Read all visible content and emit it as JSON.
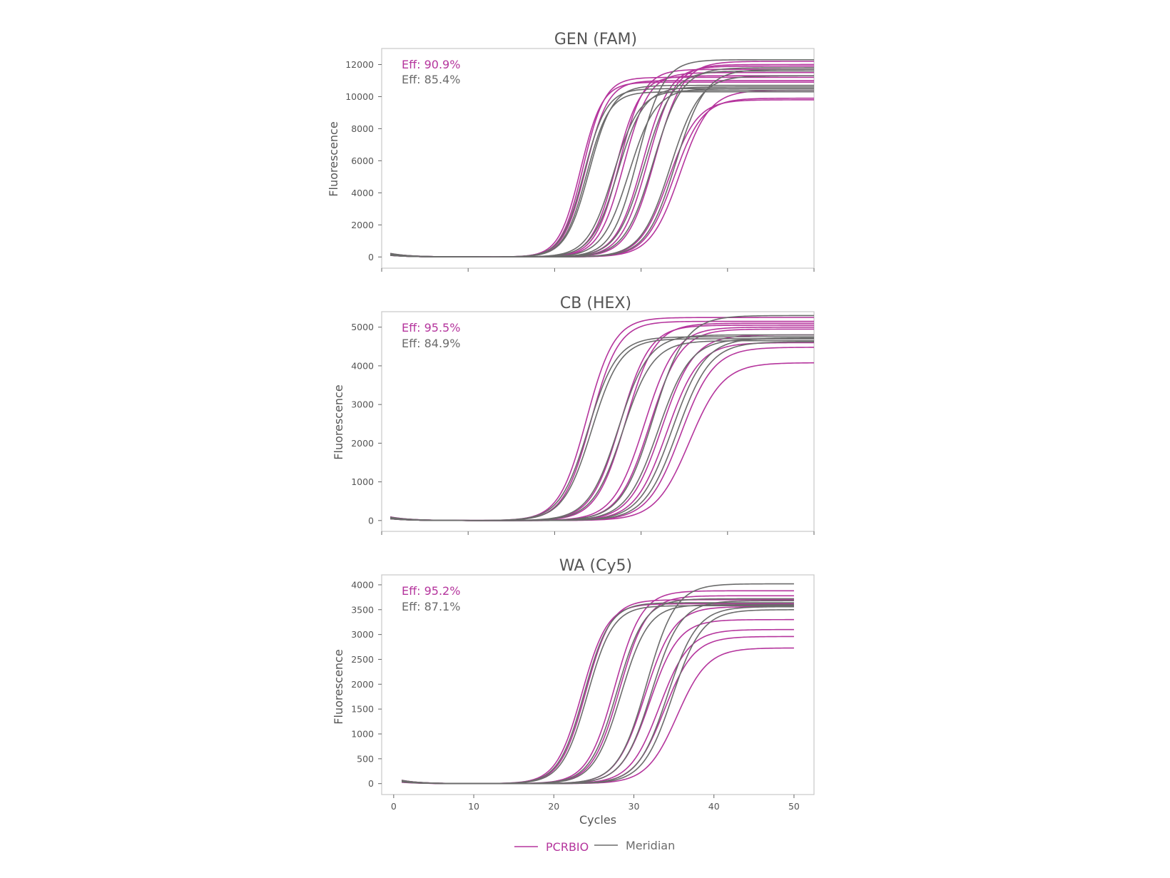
{
  "colors": {
    "pcrbio": "#b5359d",
    "meridian": "#6b6b6b",
    "text": "#555555"
  },
  "legend": {
    "pcrbio_label": "PCRBIO",
    "meridian_label": "Meridian"
  },
  "chart_data": [
    {
      "type": "line",
      "title": "GEN (FAM)",
      "xlabel": "",
      "ylabel": "Fluorescence",
      "xlim": [
        0,
        50
      ],
      "ylim": [
        -700,
        13000
      ],
      "x_ticks": [
        0,
        10,
        20,
        30,
        40,
        50
      ],
      "x_tick_labels_visible": false,
      "y_ticks": [
        0,
        2000,
        4000,
        6000,
        8000,
        10000,
        12000
      ],
      "eff": [
        {
          "label": "Eff: 90.9%",
          "series": "PCRBIO"
        },
        {
          "label": "Eff: 85.4%",
          "series": "Meridian"
        }
      ],
      "series": [
        {
          "name": "PCRBIO",
          "curves": [
            {
              "ct": 23.0,
              "plateau": 10900,
              "slope": 1.25
            },
            {
              "ct": 23.3,
              "plateau": 11200,
              "slope": 1.25
            },
            {
              "ct": 23.6,
              "plateau": 11000,
              "slope": 1.3
            },
            {
              "ct": 27.1,
              "plateau": 11300,
              "slope": 1.4
            },
            {
              "ct": 27.5,
              "plateau": 11700,
              "slope": 1.4
            },
            {
              "ct": 28.0,
              "plateau": 11500,
              "slope": 1.45
            },
            {
              "ct": 30.2,
              "plateau": 11900,
              "slope": 1.55
            },
            {
              "ct": 30.8,
              "plateau": 12000,
              "slope": 1.55
            },
            {
              "ct": 31.6,
              "plateau": 12200,
              "slope": 1.6
            },
            {
              "ct": 33.2,
              "plateau": 9800,
              "slope": 1.65
            },
            {
              "ct": 33.8,
              "plateau": 9900,
              "slope": 1.65
            },
            {
              "ct": 34.5,
              "plateau": 10400,
              "slope": 1.7
            }
          ]
        },
        {
          "name": "Meridian",
          "curves": [
            {
              "ct": 23.4,
              "plateau": 10500,
              "slope": 1.3
            },
            {
              "ct": 23.7,
              "plateau": 10300,
              "slope": 1.3
            },
            {
              "ct": 24.0,
              "plateau": 10700,
              "slope": 1.35
            },
            {
              "ct": 26.8,
              "plateau": 10400,
              "slope": 1.5
            },
            {
              "ct": 27.3,
              "plateau": 10600,
              "slope": 1.5
            },
            {
              "ct": 28.6,
              "plateau": 10500,
              "slope": 1.55
            },
            {
              "ct": 29.6,
              "plateau": 12300,
              "slope": 1.5
            },
            {
              "ct": 30.4,
              "plateau": 11600,
              "slope": 1.6
            },
            {
              "ct": 31.4,
              "plateau": 11800,
              "slope": 1.65
            },
            {
              "ct": 33.4,
              "plateau": 11300,
              "slope": 1.7
            },
            {
              "ct": 34.0,
              "plateau": 11700,
              "slope": 1.7
            }
          ]
        }
      ]
    },
    {
      "type": "line",
      "title": "CB (HEX)",
      "xlabel": "",
      "ylabel": "Fluorescence",
      "xlim": [
        0,
        50
      ],
      "ylim": [
        -280,
        5400
      ],
      "x_ticks": [
        0,
        10,
        20,
        30,
        40,
        50
      ],
      "x_tick_labels_visible": false,
      "y_ticks": [
        0,
        1000,
        2000,
        3000,
        4000,
        5000
      ],
      "eff": [
        {
          "label": "Eff: 95.5%",
          "series": "PCRBIO"
        },
        {
          "label": "Eff: 84.9%",
          "series": "Meridian"
        }
      ],
      "series": [
        {
          "name": "PCRBIO",
          "curves": [
            {
              "ct": 23.7,
              "plateau": 5250,
              "slope": 1.6
            },
            {
              "ct": 24.2,
              "plateau": 5150,
              "slope": 1.6
            },
            {
              "ct": 27.6,
              "plateau": 5050,
              "slope": 1.7
            },
            {
              "ct": 28.2,
              "plateau": 5100,
              "slope": 1.7
            },
            {
              "ct": 30.4,
              "plateau": 5000,
              "slope": 1.8
            },
            {
              "ct": 31.0,
              "plateau": 4950,
              "slope": 1.8
            },
            {
              "ct": 32.4,
              "plateau": 4800,
              "slope": 1.85
            },
            {
              "ct": 33.0,
              "plateau": 4600,
              "slope": 1.85
            },
            {
              "ct": 34.6,
              "plateau": 4480,
              "slope": 1.9
            },
            {
              "ct": 35.6,
              "plateau": 4080,
              "slope": 1.95
            }
          ]
        },
        {
          "name": "Meridian",
          "curves": [
            {
              "ct": 23.9,
              "plateau": 4750,
              "slope": 1.65
            },
            {
              "ct": 24.3,
              "plateau": 4700,
              "slope": 1.65
            },
            {
              "ct": 27.4,
              "plateau": 4800,
              "slope": 1.75
            },
            {
              "ct": 27.9,
              "plateau": 4650,
              "slope": 1.75
            },
            {
              "ct": 31.4,
              "plateau": 5300,
              "slope": 1.85
            },
            {
              "ct": 32.0,
              "plateau": 4700,
              "slope": 1.85
            },
            {
              "ct": 33.6,
              "plateau": 4720,
              "slope": 1.9
            },
            {
              "ct": 34.2,
              "plateau": 4620,
              "slope": 1.9
            }
          ]
        }
      ]
    },
    {
      "type": "line",
      "title": "WA (Cy5)",
      "xlabel": "Cycles",
      "ylabel": "Fluorescence",
      "xlim": [
        -1.5,
        52.5
      ],
      "ylim": [
        -220,
        4200
      ],
      "x_ticks": [
        0,
        10,
        20,
        30,
        40,
        50
      ],
      "x_tick_labels_visible": true,
      "y_ticks": [
        0,
        500,
        1000,
        1500,
        2000,
        2500,
        3000,
        3500,
        4000
      ],
      "eff": [
        {
          "label": "Eff: 95.2%",
          "series": "PCRBIO"
        },
        {
          "label": "Eff: 87.1%",
          "series": "Meridian"
        }
      ],
      "series": [
        {
          "name": "PCRBIO",
          "curves": [
            {
              "ct": 23.5,
              "plateau": 3620,
              "slope": 1.6
            },
            {
              "ct": 24.0,
              "plateau": 3700,
              "slope": 1.6
            },
            {
              "ct": 27.6,
              "plateau": 3880,
              "slope": 1.7
            },
            {
              "ct": 28.2,
              "plateau": 3780,
              "slope": 1.7
            },
            {
              "ct": 31.4,
              "plateau": 3560,
              "slope": 1.8
            },
            {
              "ct": 32.0,
              "plateau": 3300,
              "slope": 1.8
            },
            {
              "ct": 33.2,
              "plateau": 3100,
              "slope": 1.85
            },
            {
              "ct": 33.8,
              "plateau": 2960,
              "slope": 1.85
            },
            {
              "ct": 35.4,
              "plateau": 2730,
              "slope": 1.9
            }
          ]
        },
        {
          "name": "Meridian",
          "curves": [
            {
              "ct": 23.8,
              "plateau": 3640,
              "slope": 1.6
            },
            {
              "ct": 24.2,
              "plateau": 3580,
              "slope": 1.6
            },
            {
              "ct": 27.9,
              "plateau": 3720,
              "slope": 1.7
            },
            {
              "ct": 28.4,
              "plateau": 3600,
              "slope": 1.7
            },
            {
              "ct": 31.6,
              "plateau": 4020,
              "slope": 1.8
            },
            {
              "ct": 32.2,
              "plateau": 3680,
              "slope": 1.8
            },
            {
              "ct": 34.2,
              "plateau": 3560,
              "slope": 1.85
            },
            {
              "ct": 34.8,
              "plateau": 3500,
              "slope": 1.85
            }
          ]
        }
      ]
    }
  ]
}
